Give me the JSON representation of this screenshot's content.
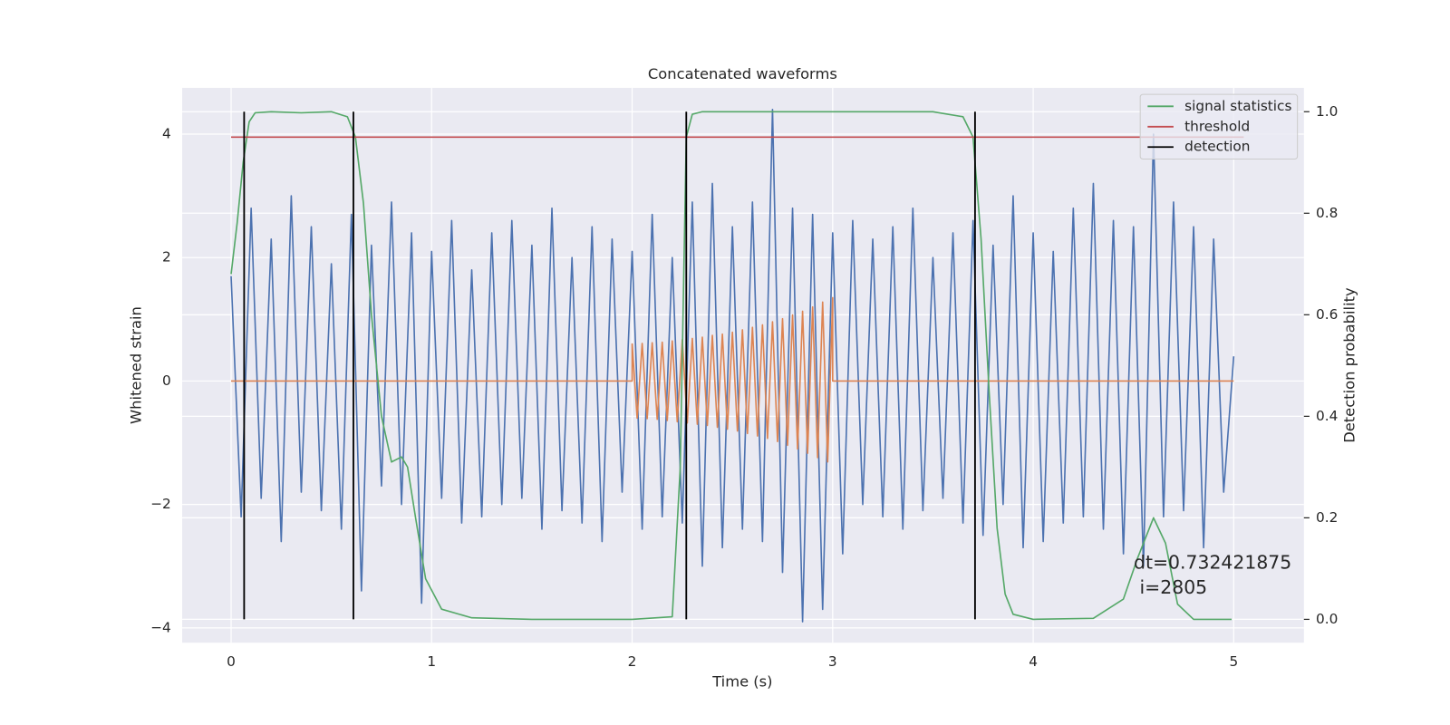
{
  "chart_data": {
    "type": "line",
    "title": "Concatenated waveforms",
    "xlabel": "Time (s)",
    "ylabel": "Whitened strain",
    "y2label": "Detection probability",
    "xlim": [
      -0.244,
      5.35
    ],
    "ylim": [
      -4.24,
      4.75
    ],
    "y2lim": [
      -0.046,
      1.047
    ],
    "xticks": [
      0,
      1,
      2,
      3,
      4,
      5
    ],
    "yticks": [
      {
        "value": -4,
        "label": "−4"
      },
      {
        "value": -2,
        "label": "−2"
      },
      0,
      2,
      4
    ],
    "y2ticks": [
      {
        "value": 0,
        "label": "0.0"
      },
      0.2,
      0.4,
      0.6,
      0.8,
      {
        "value": 1,
        "label": "1.0"
      }
    ],
    "grid": true,
    "legend": "upper right",
    "annotation": [
      "dt=0.732421875",
      " i=2805"
    ],
    "series": [
      {
        "color": "#4c72b0",
        "axis": "y",
        "x": [
          0,
          0.05,
          0.1,
          0.15,
          0.2,
          0.25,
          0.3,
          0.35,
          0.4,
          0.45,
          0.5,
          0.55,
          0.6,
          0.65,
          0.7,
          0.75,
          0.8,
          0.85,
          0.9,
          0.95,
          1,
          1.05,
          1.1,
          1.15,
          1.2,
          1.25,
          1.3,
          1.35,
          1.4,
          1.45,
          1.5,
          1.55,
          1.6,
          1.65,
          1.7,
          1.75,
          1.8,
          1.85,
          1.9,
          1.95,
          2,
          2.05,
          2.1,
          2.15,
          2.2,
          2.25,
          2.3,
          2.35,
          2.4,
          2.45,
          2.5,
          2.55,
          2.6,
          2.65,
          2.7,
          2.75,
          2.8,
          2.85,
          2.9,
          2.95,
          3,
          3.05,
          3.1,
          3.15,
          3.2,
          3.25,
          3.3,
          3.35,
          3.4,
          3.45,
          3.5,
          3.55,
          3.6,
          3.65,
          3.7,
          3.75,
          3.8,
          3.85,
          3.9,
          3.95,
          4,
          4.05,
          4.1,
          4.15,
          4.2,
          4.25,
          4.3,
          4.35,
          4.4,
          4.45,
          4.5,
          4.55,
          4.6,
          4.65,
          4.7,
          4.75,
          4.8,
          4.85,
          4.9,
          4.95,
          5
        ],
        "values": [
          1.7,
          -2.2,
          2.8,
          -1.9,
          2.3,
          -2.6,
          3.0,
          -1.8,
          2.5,
          -2.1,
          1.9,
          -2.4,
          2.7,
          -3.4,
          2.2,
          -1.7,
          2.9,
          -2.0,
          2.4,
          -3.6,
          2.1,
          -1.9,
          2.6,
          -2.3,
          1.8,
          -2.2,
          2.4,
          -2.0,
          2.6,
          -1.9,
          2.2,
          -2.4,
          2.8,
          -2.1,
          2.0,
          -2.3,
          2.5,
          -2.6,
          2.3,
          -1.8,
          2.1,
          -2.4,
          2.7,
          -2.2,
          2.0,
          -2.3,
          2.9,
          -3.0,
          3.2,
          -2.7,
          2.5,
          -2.4,
          2.9,
          -2.6,
          4.4,
          -3.1,
          2.8,
          -3.9,
          2.7,
          -3.7,
          2.4,
          -2.8,
          2.6,
          -2.0,
          2.3,
          -2.2,
          2.5,
          -2.4,
          2.8,
          -2.1,
          2.0,
          -1.9,
          2.4,
          -2.3,
          2.6,
          -2.5,
          2.2,
          -2.0,
          3.0,
          -2.7,
          2.4,
          -2.6,
          2.1,
          -2.3,
          2.8,
          -2.2,
          3.2,
          -2.4,
          2.6,
          -2.8,
          2.5,
          -3.0,
          4.0,
          -2.2,
          2.9,
          -2.1,
          2.5,
          -2.7,
          2.3,
          -1.8,
          0.4
        ]
      },
      {
        "color": "#dd8452",
        "axis": "y",
        "x": [
          0,
          2,
          2,
          2.025,
          2.05,
          2.075,
          2.1,
          2.125,
          2.15,
          2.175,
          2.2,
          2.225,
          2.25,
          2.275,
          2.3,
          2.325,
          2.35,
          2.375,
          2.4,
          2.425,
          2.45,
          2.475,
          2.5,
          2.525,
          2.55,
          2.575,
          2.6,
          2.625,
          2.65,
          2.675,
          2.7,
          2.725,
          2.75,
          2.775,
          2.8,
          2.825,
          2.85,
          2.875,
          2.9,
          2.925,
          2.95,
          2.975,
          3,
          3,
          5
        ],
        "values": [
          0,
          0,
          0.6,
          -0.6,
          0.61,
          -0.61,
          0.62,
          -0.62,
          0.63,
          -0.64,
          0.65,
          -0.66,
          0.67,
          -0.68,
          0.69,
          -0.7,
          0.71,
          -0.72,
          0.74,
          -0.75,
          0.76,
          -0.78,
          0.79,
          -0.81,
          0.83,
          -0.85,
          0.87,
          -0.89,
          0.91,
          -0.93,
          0.96,
          -0.98,
          1.01,
          -1.04,
          1.07,
          -1.1,
          1.13,
          -1.17,
          1.2,
          -1.24,
          1.28,
          -1.31,
          1.35,
          0,
          0
        ]
      },
      {
        "name": "signal statistics",
        "color": "#55a868",
        "axis": "y2",
        "x": [
          0,
          0.03,
          0.06,
          0.09,
          0.12,
          0.2,
          0.35,
          0.5,
          0.58,
          0.62,
          0.66,
          0.7,
          0.75,
          0.8,
          0.85,
          0.88,
          0.92,
          0.97,
          1.05,
          1.2,
          1.5,
          2.0,
          2.2,
          2.24,
          2.27,
          2.3,
          2.35,
          2.5,
          3.0,
          3.5,
          3.65,
          3.7,
          3.74,
          3.78,
          3.82,
          3.86,
          3.9,
          4.0,
          4.3,
          4.45,
          4.52,
          4.6,
          4.66,
          4.72,
          4.8,
          4.99
        ],
        "values": [
          0.68,
          0.78,
          0.9,
          0.98,
          0.998,
          1.0,
          0.998,
          1.0,
          0.99,
          0.95,
          0.82,
          0.6,
          0.4,
          0.31,
          0.32,
          0.3,
          0.2,
          0.08,
          0.02,
          0.003,
          0.0,
          0.0,
          0.005,
          0.3,
          0.95,
          0.995,
          1.0,
          1.0,
          1.0,
          1.0,
          0.99,
          0.95,
          0.75,
          0.45,
          0.18,
          0.05,
          0.01,
          0.0,
          0.002,
          0.04,
          0.12,
          0.2,
          0.15,
          0.03,
          0.0,
          0.0
        ]
      },
      {
        "name": "threshold",
        "color": "#c44e52",
        "axis": "y2",
        "x": [
          0,
          5.05
        ],
        "values": [
          0.95,
          0.95
        ]
      },
      {
        "name": "detection",
        "color": "#000000",
        "axis": "y2",
        "type": "vlines",
        "x": [
          0.065,
          0.61,
          2.27,
          3.71
        ],
        "values": [
          1,
          1,
          1,
          1
        ]
      }
    ]
  }
}
